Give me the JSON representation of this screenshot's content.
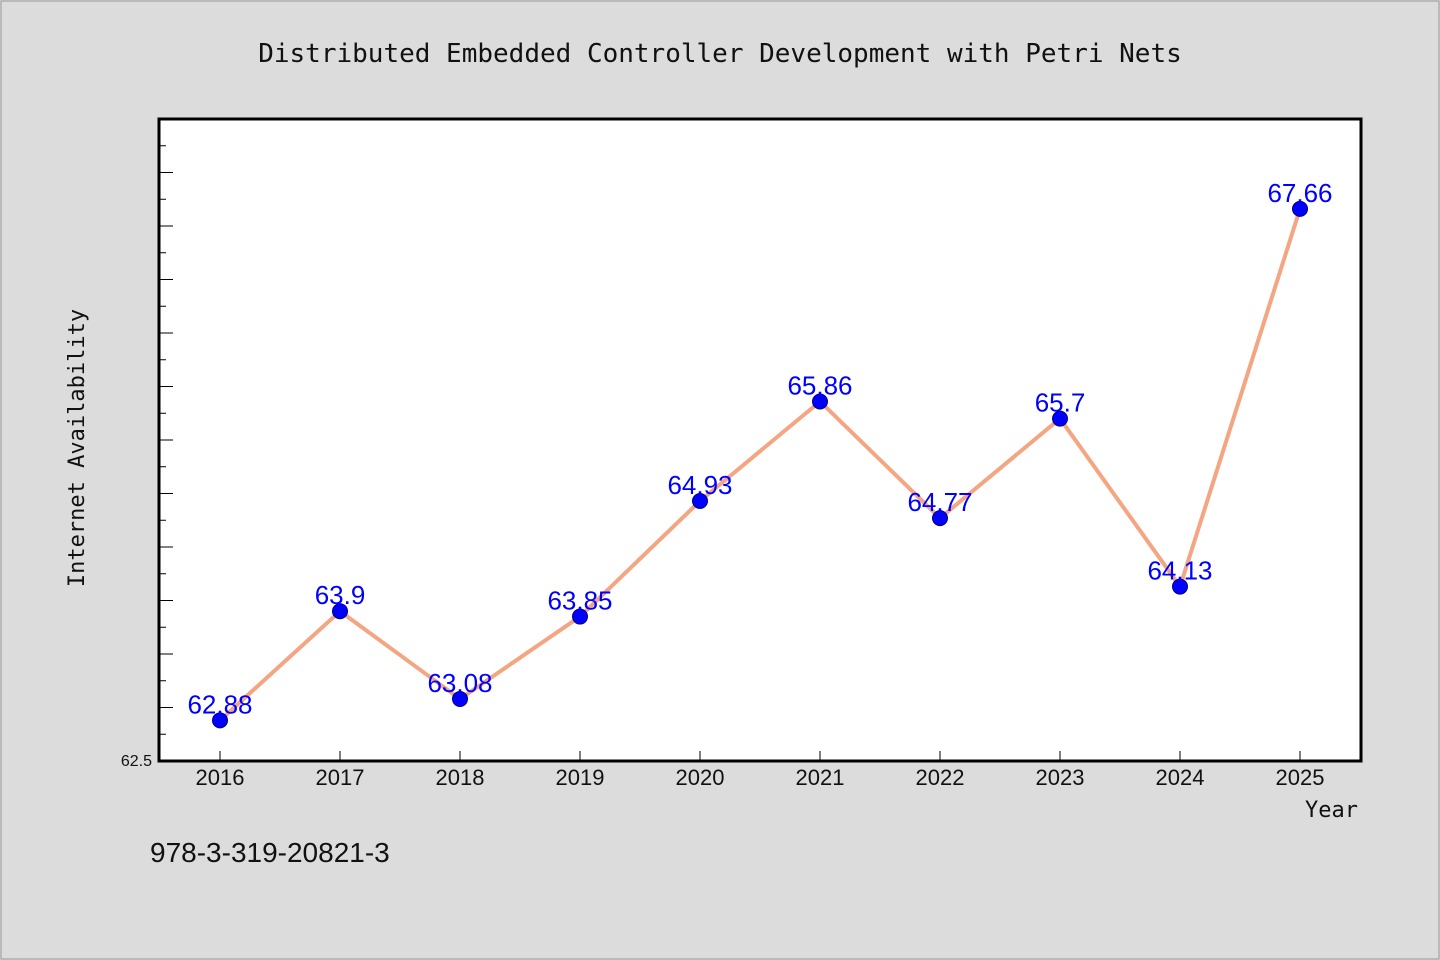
{
  "chart_data": {
    "type": "line",
    "title": "Distributed Embedded Controller Development with Petri Nets",
    "xlabel": "Year",
    "ylabel": "Internet Availability",
    "categories": [
      "2016",
      "2017",
      "2018",
      "2019",
      "2020",
      "2021",
      "2022",
      "2023",
      "2024",
      "2025"
    ],
    "values": [
      62.88,
      63.9,
      63.08,
      63.85,
      64.93,
      65.86,
      64.77,
      65.7,
      64.13,
      67.66
    ],
    "data_labels": [
      "62.88",
      "63.9",
      "63.08",
      "63.85",
      "64.93",
      "65.86",
      "64.77",
      "65.7",
      "64.13",
      "67.66"
    ],
    "ylim": [
      62.5,
      68.5
    ],
    "y_tick_labels": [
      "62.5"
    ],
    "grid": false,
    "legend": "none",
    "colors": {
      "line": "#f4a582",
      "marker": "#0000ff",
      "label": "#0000ff",
      "background": "#dcdcdc",
      "plot_area": "#ffffff"
    }
  },
  "footnote": "978-3-319-20821-3"
}
